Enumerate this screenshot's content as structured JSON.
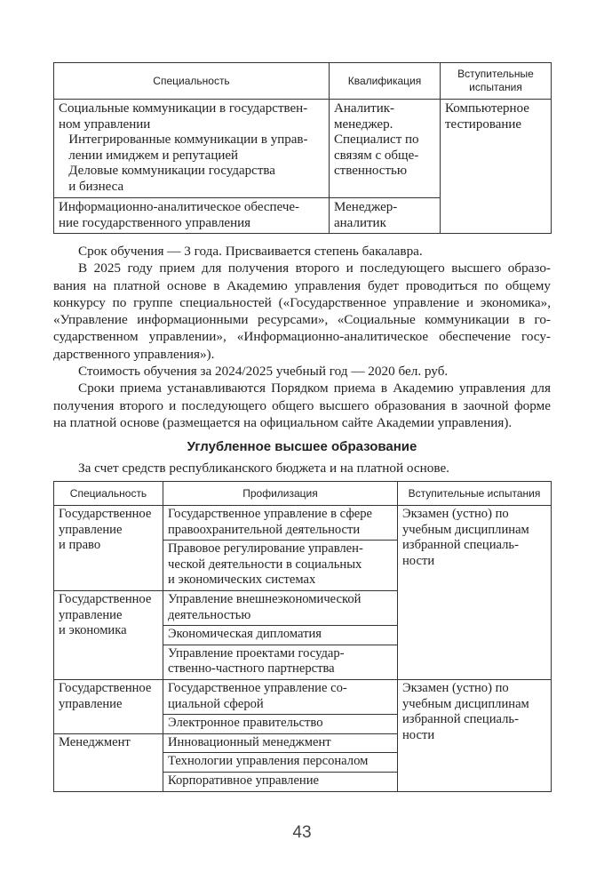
{
  "table1": {
    "headers": [
      "Специальность",
      "Квалификация",
      "Вступительные\nиспытания"
    ],
    "rows": [
      {
        "specialty": "Социальные коммуникации в государствен-\nном управлении\n   Интегрированные коммуникации в управ-\n   лении имиджем и репутацией\n   Деловые коммуникации государства\n   и бизнеса",
        "qualification": "Аналитик-\nменеджер.\nСпециалист по\nсвязям с обще-\nственностью"
      },
      {
        "specialty": "Информационно-аналитическое обеспече-\nние государственного управления",
        "qualification": "Менеджер-\nаналитик"
      }
    ],
    "exam": "Компьютерное\nтестирование"
  },
  "paragraphs": [
    [
      "Срок обучения — 3 года. Присваивается степень бакалавра."
    ],
    [
      "В 2025 году прием для получения второго и последующего высшего образо-",
      "вания на платной основе в Академию управления будет проводиться по общему",
      "конкурсу по группе специальностей («Государственное управление и экономика»,",
      "«Управление информационными ресурсами», «Социальные коммуникации в го-",
      "сударственном управлении», «Информационно-аналитическое обеспечение госу-",
      "дарственного управления»)."
    ],
    [
      "Стоимость обучения за 2024/2025 учебный год — 2020 бел. руб."
    ],
    [
      "Сроки приема устанавливаются Порядком приема в Академию управления для",
      "получения второго и последующего общего высшего образования в заочной форме",
      "на платной основе (размещается на официальном сайте Академии управления)."
    ]
  ],
  "section_heading": "Углубленное высшее образование",
  "section_note": "За счет средств республиканского бюджета и на платной основе.",
  "table2": {
    "headers": [
      "Специальность",
      "Профилизация",
      "Вступительные испытания"
    ],
    "groups": [
      {
        "specialty": "Государственное\nуправление\nи право",
        "profiles": [
          "Государственное управление в сфере\nправоохранительной деятельности",
          "Правовое регулирование управлен-\nческой деятельности в социальных\nи экономических системах"
        ]
      },
      {
        "specialty": "Государственное\nуправление\nи экономика",
        "profiles": [
          "Управление внешнеэкономической\nдеятельностью",
          "Экономическая дипломатия",
          "Управление проектами государ-\nственно-частного партнерства"
        ]
      },
      {
        "specialty": "Государственное\nуправление",
        "profiles": [
          "Государственное управление со-\nциальной сферой",
          "Электронное правительство"
        ]
      },
      {
        "specialty": "Менеджмент",
        "profiles": [
          "Инновационный менеджмент",
          "Технологии управления персоналом",
          "Корпоративное управление"
        ]
      }
    ],
    "exams": [
      "Экзамен (устно) по\nучебным дисциплинам\nизбранной специаль-\nности",
      "Экзамен (устно) по\nучебным дисциплинам\nизбранной специаль-\nности"
    ]
  },
  "page_number": "43"
}
